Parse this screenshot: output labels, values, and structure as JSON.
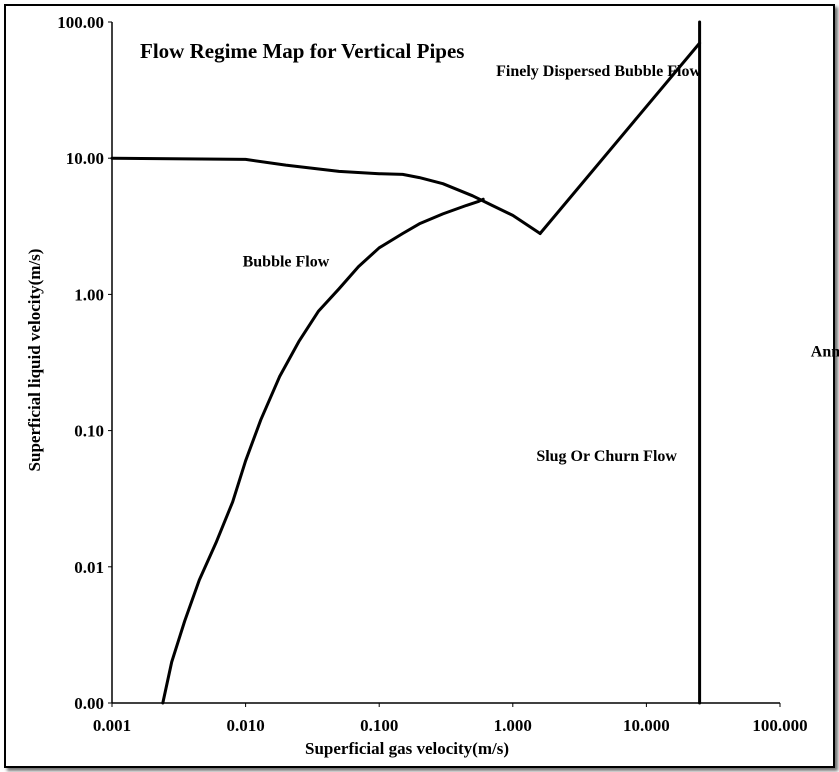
{
  "chart_data": {
    "type": "line",
    "title": "Flow Regime Map for Vertical Pipes",
    "xlabel": "Superficial gas velocity(m/s)",
    "ylabel": "Superficial liquid velocity(m/s)",
    "x_scale": "log",
    "y_scale": "log",
    "xlim": [
      0.001,
      100
    ],
    "ylim": [
      0.001,
      100
    ],
    "x_ticks": [
      {
        "value": 0.001,
        "label": "0.001"
      },
      {
        "value": 0.01,
        "label": "0.010"
      },
      {
        "value": 0.1,
        "label": "0.100"
      },
      {
        "value": 1,
        "label": "1.000"
      },
      {
        "value": 10,
        "label": "10.000"
      },
      {
        "value": 100,
        "label": "100.000"
      }
    ],
    "y_ticks": [
      {
        "value": 0.001,
        "label": "0.00"
      },
      {
        "value": 0.01,
        "label": "0.01"
      },
      {
        "value": 0.1,
        "label": "0.10"
      },
      {
        "value": 1,
        "label": "1.00"
      },
      {
        "value": 10,
        "label": "10.00"
      },
      {
        "value": 100,
        "label": "100.00"
      }
    ],
    "grid": false,
    "legend": "none",
    "line_color": "#000000",
    "series": [
      {
        "x": [
          0.001,
          0.01,
          0.02,
          0.05,
          0.1,
          0.15,
          0.2,
          0.3,
          0.5,
          0.7,
          1.0,
          1.6
        ],
        "y": [
          10.0,
          9.8,
          8.9,
          8.0,
          7.7,
          7.6,
          7.2,
          6.5,
          5.3,
          4.5,
          3.8,
          2.8
        ]
      },
      {
        "x": [
          0.0024,
          0.0028,
          0.0035,
          0.0045,
          0.006,
          0.008,
          0.01,
          0.013,
          0.018,
          0.025,
          0.035,
          0.05,
          0.07,
          0.1,
          0.15,
          0.2,
          0.3,
          0.45,
          0.55,
          0.6
        ],
        "y": [
          0.001,
          0.002,
          0.004,
          0.008,
          0.015,
          0.03,
          0.06,
          0.12,
          0.25,
          0.45,
          0.75,
          1.1,
          1.6,
          2.2,
          2.8,
          3.3,
          3.9,
          4.5,
          4.8,
          5.0
        ]
      },
      {
        "x": [
          1.6,
          25
        ],
        "y": [
          2.8,
          70
        ]
      },
      {
        "x": [
          25,
          25
        ],
        "y": [
          0.001,
          100
        ]
      }
    ],
    "annotations": [
      {
        "text": "Finely Dispersed Bubble Flow",
        "x": 0.75,
        "y": 40
      },
      {
        "text": "Bubble Flow",
        "x": 0.0095,
        "y": 1.6
      },
      {
        "text": "Slug Or Churn Flow",
        "x": 1.5,
        "y": 0.06
      },
      {
        "text": "Annular",
        "x": 170,
        "y": 0.35
      }
    ]
  }
}
